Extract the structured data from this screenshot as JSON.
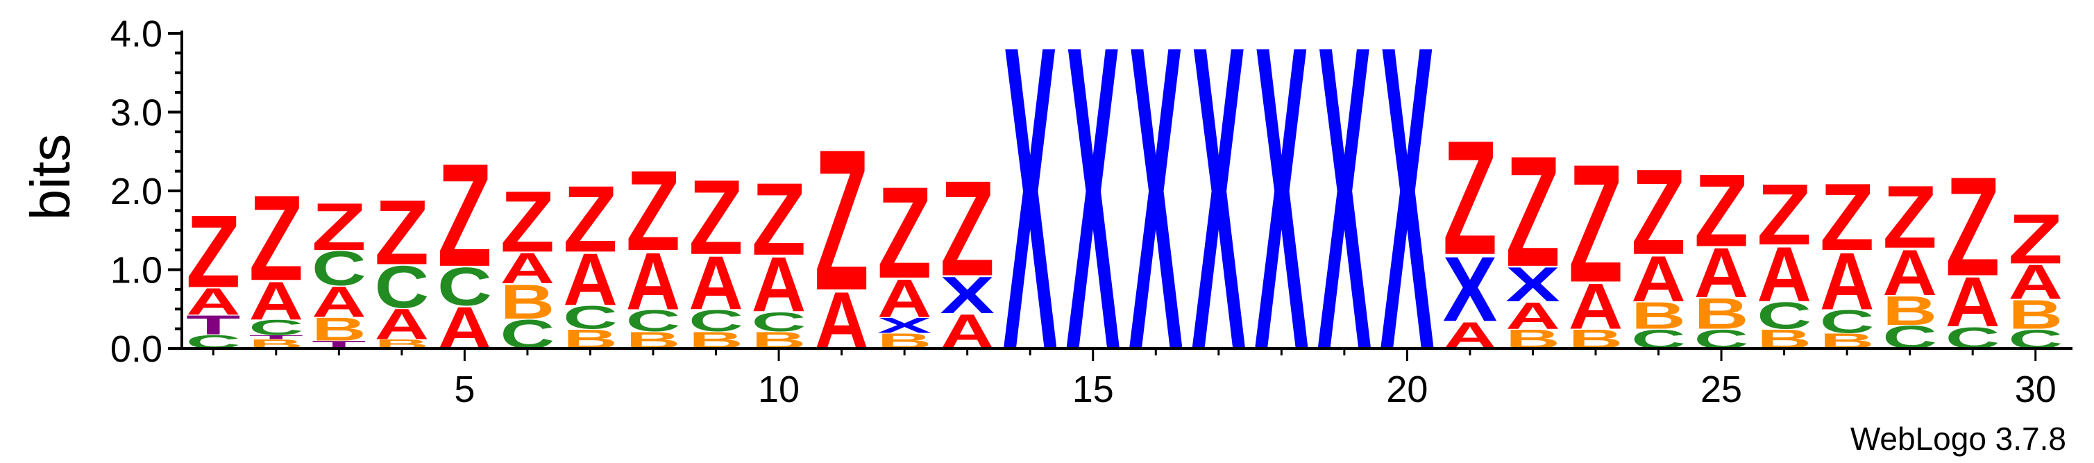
{
  "chart_data": {
    "type": "sequence-logo",
    "ylabel": "bits",
    "ylim": [
      0,
      4.0
    ],
    "yticks": [
      "0.0",
      "1.0",
      "2.0",
      "3.0",
      "4.0"
    ],
    "xlim": [
      1,
      30
    ],
    "xticks": [
      5,
      10,
      15,
      20,
      25,
      30
    ],
    "credit": "WebLogo 3.7.8",
    "colors": {
      "Z": "#ff0000",
      "A": "#ff0000",
      "X": "#0000ff",
      "C": "#228b22",
      "B": "#ff8c00",
      "T": "#800080"
    },
    "positions": [
      {
        "pos": 1,
        "stack": [
          [
            "C",
            0.18
          ],
          [
            "T",
            0.25
          ],
          [
            "A",
            0.35
          ],
          [
            "Z",
            0.95
          ]
        ]
      },
      {
        "pos": 2,
        "stack": [
          [
            "B",
            0.12
          ],
          [
            "T",
            0.05
          ],
          [
            "C",
            0.2
          ],
          [
            "A",
            0.5
          ],
          [
            "Z",
            1.12
          ]
        ]
      },
      {
        "pos": 3,
        "stack": [
          [
            "T",
            0.1
          ],
          [
            "B",
            0.3
          ],
          [
            "A",
            0.4
          ],
          [
            "C",
            0.45
          ],
          [
            "Z",
            0.62
          ]
        ]
      },
      {
        "pos": 4,
        "stack": [
          [
            "B",
            0.12
          ],
          [
            "A",
            0.4
          ],
          [
            "C",
            0.55
          ],
          [
            "Z",
            0.85
          ]
        ]
      },
      {
        "pos": 5,
        "stack": [
          [
            "A",
            0.55
          ],
          [
            "C",
            0.5
          ],
          [
            "Z",
            1.35
          ]
        ]
      },
      {
        "pos": 6,
        "stack": [
          [
            "C",
            0.38
          ],
          [
            "B",
            0.45
          ],
          [
            "A",
            0.4
          ],
          [
            "Z",
            0.8
          ]
        ]
      },
      {
        "pos": 7,
        "stack": [
          [
            "B",
            0.25
          ],
          [
            "C",
            0.3
          ],
          [
            "A",
            0.68
          ],
          [
            "Z",
            0.87
          ]
        ]
      },
      {
        "pos": 8,
        "stack": [
          [
            "B",
            0.22
          ],
          [
            "C",
            0.28
          ],
          [
            "A",
            0.75
          ],
          [
            "Z",
            1.05
          ]
        ]
      },
      {
        "pos": 9,
        "stack": [
          [
            "B",
            0.22
          ],
          [
            "C",
            0.28
          ],
          [
            "A",
            0.7
          ],
          [
            "Z",
            0.98
          ]
        ]
      },
      {
        "pos": 10,
        "stack": [
          [
            "B",
            0.22
          ],
          [
            "C",
            0.25
          ],
          [
            "A",
            0.72
          ],
          [
            "Z",
            0.95
          ]
        ]
      },
      {
        "pos": 11,
        "stack": [
          [
            "A",
            0.75
          ],
          [
            "Z",
            1.85
          ]
        ]
      },
      {
        "pos": 12,
        "stack": [
          [
            "B",
            0.2
          ],
          [
            "X",
            0.2
          ],
          [
            "A",
            0.5
          ],
          [
            "Z",
            1.2
          ]
        ]
      },
      {
        "pos": 13,
        "stack": [
          [
            "A",
            0.45
          ],
          [
            "X",
            0.48
          ],
          [
            "Z",
            1.25
          ]
        ]
      },
      {
        "pos": 14,
        "stack": [
          [
            "X",
            4.0
          ]
        ]
      },
      {
        "pos": 15,
        "stack": [
          [
            "X",
            4.0
          ]
        ]
      },
      {
        "pos": 16,
        "stack": [
          [
            "X",
            4.0
          ]
        ]
      },
      {
        "pos": 17,
        "stack": [
          [
            "X",
            4.0
          ]
        ]
      },
      {
        "pos": 18,
        "stack": [
          [
            "X",
            4.0
          ]
        ]
      },
      {
        "pos": 19,
        "stack": [
          [
            "X",
            4.0
          ]
        ]
      },
      {
        "pos": 20,
        "stack": [
          [
            "X",
            4.0
          ]
        ]
      },
      {
        "pos": 21,
        "stack": [
          [
            "A",
            0.35
          ],
          [
            "X",
            0.85
          ],
          [
            "Z",
            1.5
          ]
        ]
      },
      {
        "pos": 22,
        "stack": [
          [
            "B",
            0.25
          ],
          [
            "A",
            0.35
          ],
          [
            "X",
            0.45
          ],
          [
            "Z",
            1.45
          ]
        ]
      },
      {
        "pos": 23,
        "stack": [
          [
            "B",
            0.25
          ],
          [
            "A",
            0.6
          ],
          [
            "Z",
            1.55
          ]
        ]
      },
      {
        "pos": 24,
        "stack": [
          [
            "C",
            0.25
          ],
          [
            "B",
            0.35
          ],
          [
            "A",
            0.6
          ],
          [
            "Z",
            1.12
          ]
        ]
      },
      {
        "pos": 25,
        "stack": [
          [
            "C",
            0.25
          ],
          [
            "B",
            0.4
          ],
          [
            "A",
            0.65
          ],
          [
            "Z",
            0.95
          ]
        ]
      },
      {
        "pos": 26,
        "stack": [
          [
            "B",
            0.25
          ],
          [
            "C",
            0.35
          ],
          [
            "A",
            0.72
          ],
          [
            "Z",
            0.8
          ]
        ]
      },
      {
        "pos": 27,
        "stack": [
          [
            "B",
            0.2
          ],
          [
            "C",
            0.3
          ],
          [
            "A",
            0.75
          ],
          [
            "Z",
            0.88
          ]
        ]
      },
      {
        "pos": 28,
        "stack": [
          [
            "C",
            0.3
          ],
          [
            "B",
            0.38
          ],
          [
            "A",
            0.6
          ],
          [
            "Z",
            0.82
          ]
        ]
      },
      {
        "pos": 29,
        "stack": [
          [
            "C",
            0.28
          ],
          [
            "A",
            0.65
          ],
          [
            "Z",
            1.3
          ]
        ]
      },
      {
        "pos": 30,
        "stack": [
          [
            "C",
            0.25
          ],
          [
            "B",
            0.38
          ],
          [
            "A",
            0.45
          ],
          [
            "Z",
            0.65
          ]
        ]
      }
    ]
  }
}
